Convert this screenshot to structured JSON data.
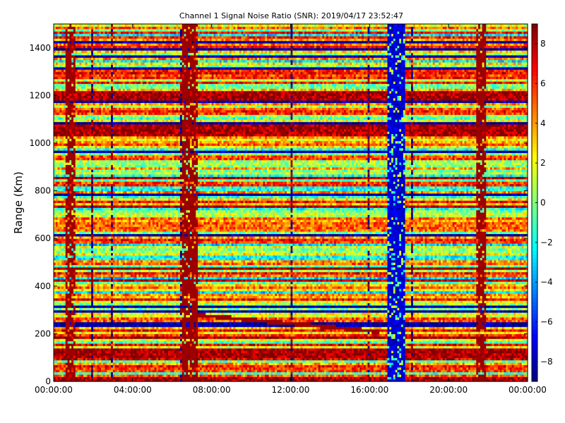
{
  "chart_data": {
    "type": "heatmap",
    "title": "Channel 1 Signal Noise Ratio (SNR): 2019/04/17 23:52:47",
    "xlabel": "",
    "ylabel": "Range (Km)",
    "xlim": [
      "00:00:00",
      "00:00:00 (+24h)"
    ],
    "ylim": [
      0,
      1500
    ],
    "x_ticks": [
      "00:00:00",
      "04:00:00",
      "08:00:00",
      "12:00:00",
      "16:00:00",
      "20:00:00",
      "00:00:00"
    ],
    "y_ticks": [
      0,
      200,
      400,
      600,
      800,
      1000,
      1200,
      1400
    ],
    "colorbar": {
      "min": -9,
      "max": 9,
      "ticks": [
        -8,
        -6,
        -4,
        -2,
        0,
        2,
        4,
        6,
        8
      ],
      "colormap": "jet"
    },
    "grid": false,
    "features": {
      "low_snr_band_hours": [
        16.9,
        17.8
      ],
      "high_snr_vertical_bands_hours": [
        [
          0.6,
          1.1
        ],
        [
          6.5,
          7.3
        ],
        [
          21.4,
          21.9
        ]
      ],
      "strong_horizontal_bands_km": [
        0,
        120,
        1060,
        1195
      ],
      "sloped_echo": {
        "start": [
          7.3,
          280
        ],
        "end": [
          16.5,
          210
        ]
      }
    }
  }
}
